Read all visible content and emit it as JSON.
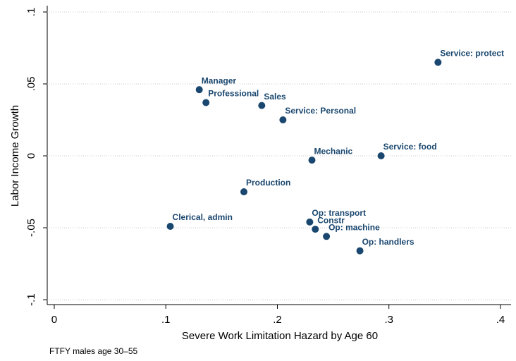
{
  "chart_data": {
    "type": "scatter",
    "x_label": "Severe Work Limitation Hazard by Age 60",
    "y_label": "Labor Income Growth",
    "note": "FTFY males age 30–55",
    "color": "#1a476f",
    "grid": true,
    "xlim": [
      -0.0063,
      0.4095
    ],
    "ylim": [
      -0.1034,
      0.1044
    ],
    "xticks": [
      0,
      {
        "value": 0.1,
        "label": ".1"
      },
      {
        "value": 0.2,
        "label": ".2"
      },
      {
        "value": 0.3,
        "label": ".3"
      },
      {
        "value": 0.4,
        "label": ".4"
      }
    ],
    "yticks": [
      {
        "value": -0.1,
        "label": "-.1"
      },
      {
        "value": -0.05,
        "label": "-.05"
      },
      0,
      {
        "value": 0.05,
        "label": ".05"
      },
      {
        "value": 0.1,
        "label": ".1"
      }
    ],
    "labels": [
      "Manager",
      "Professional",
      "Sales",
      "Service: Personal",
      "Service: protect",
      "Mechanic",
      "Service: food",
      "Production",
      "Clerical, admin",
      "Op: transport",
      "Constr",
      "Op: machine",
      "Op: handlers"
    ],
    "x": [
      0.13,
      0.136,
      0.186,
      0.205,
      0.344,
      0.231,
      0.293,
      0.17,
      0.104,
      0.229,
      0.234,
      0.244,
      0.274
    ],
    "y": [
      0.046,
      0.037,
      0.035,
      0.025,
      0.065,
      -0.003,
      0,
      -0.025,
      -0.049,
      -0.046,
      -0.051,
      -0.056,
      -0.066
    ]
  }
}
